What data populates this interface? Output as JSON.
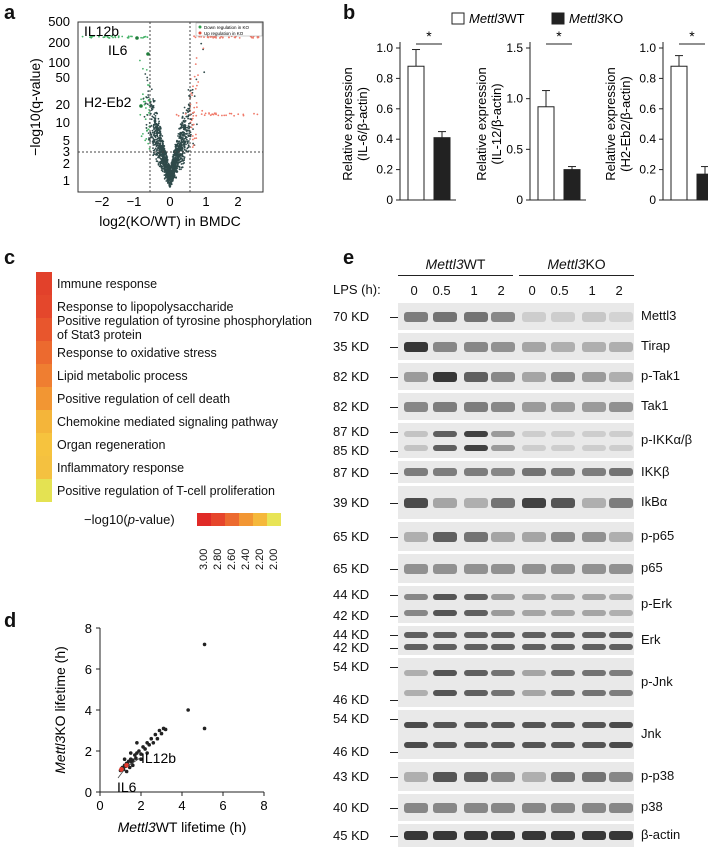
{
  "panels": {
    "a": "a",
    "b": "b",
    "c": "c",
    "d": "d",
    "e": "e"
  },
  "panel_a": {
    "legend": [
      "Down regulation in KO",
      "Up regulation in KO"
    ],
    "ylabel": "−log10(q-value)",
    "xlabel": "log2(KO/WT) in BMDC",
    "xticks": [
      "−2",
      "−1",
      "0",
      "1",
      "2"
    ],
    "yticks": [
      "500",
      "200",
      "100",
      "50",
      "20",
      "10",
      "5",
      "3",
      "2",
      "1"
    ],
    "labels": [
      "IL12b",
      "IL6",
      "H2-Eb2"
    ]
  },
  "panel_b": {
    "legend_wt": "Mettl3WT",
    "legend_ko": "Mettl3KO",
    "legend_wt_gene": "Mettl3",
    "legend_wt_suffix": "WT",
    "legend_ko_gene": "Mettl3",
    "legend_ko_suffix": "KO",
    "star": "*",
    "charts": [
      {
        "ylabel1": "Relative expression",
        "ylabel2": "(IL-6/β-actin)",
        "wt": 0.88,
        "ko": 0.41,
        "wt_err": 0.11,
        "ko_err": 0.04,
        "yticks": [
          "0",
          "0.2",
          "0.4",
          "0.6",
          "0.8",
          "1.0"
        ],
        "ymax": 1.0
      },
      {
        "ylabel1": "Relative expression",
        "ylabel2": "(IL-12/β-actin)",
        "wt": 0.92,
        "ko": 0.3,
        "wt_err": 0.16,
        "ko_err": 0.03,
        "yticks": [
          "0",
          "0.5",
          "1.0",
          "1.5"
        ],
        "ymax": 1.5
      },
      {
        "ylabel1": "Relative expression",
        "ylabel2": "(H2-Eb2/β-actin)",
        "wt": 0.88,
        "ko": 0.17,
        "wt_err": 0.07,
        "ko_err": 0.05,
        "yticks": [
          "0",
          "0.2",
          "0.4",
          "0.6",
          "0.8",
          "1.0"
        ],
        "ymax": 1.0
      }
    ]
  },
  "panel_c": {
    "terms": [
      {
        "label": "Immune response",
        "color": "#e2412b"
      },
      {
        "label": "Response to lipopolysaccharide",
        "color": "#e4472c"
      },
      {
        "label": "Positive regulation of tyrosine phosphorylation of Stat3 protein",
        "color": "#e8562d"
      },
      {
        "label": "Response to oxidative stress",
        "color": "#ec6a2f"
      },
      {
        "label": "Lipid metabolic process",
        "color": "#ef7e31"
      },
      {
        "label": "Positive regulation of cell death",
        "color": "#f29633"
      },
      {
        "label": "Chemokine mediated signaling pathway",
        "color": "#f4b53a"
      },
      {
        "label": "Organ regeneration",
        "color": "#f6c33e"
      },
      {
        "label": "Inflammatory response",
        "color": "#f4c140"
      },
      {
        "label": "Positive regulation of T-cell proliferation",
        "color": "#e4e252"
      }
    ],
    "scale_label_prefix": "−log10(",
    "scale_label_italic": "p",
    "scale_label_suffix": "-value)",
    "scale_values": [
      "3.00",
      "2.80",
      "2.60",
      "2.40",
      "2.20",
      "2.00"
    ],
    "scale_colors": [
      "#e02a27",
      "#e6452b",
      "#ec6a2f",
      "#f29633",
      "#f5b83b",
      "#e8e456"
    ]
  },
  "panel_d": {
    "chart_data": {
      "type": "scatter",
      "xlabel": "Mettl3WT lifetime (h)",
      "ylabel": "Mettl3KO lifetime (h)",
      "xlim": [
        0,
        8
      ],
      "ylim": [
        0,
        8
      ],
      "xticks": [
        "0",
        "2",
        "4",
        "6",
        "8"
      ],
      "yticks": [
        "0",
        "2",
        "4",
        "6",
        "8"
      ],
      "points": [
        [
          1.0,
          1.05
        ],
        [
          1.05,
          1.15
        ],
        [
          1.1,
          1.2
        ],
        [
          1.15,
          1.1
        ],
        [
          1.2,
          1.3
        ],
        [
          1.25,
          1.25
        ],
        [
          1.3,
          1.4
        ],
        [
          1.35,
          1.35
        ],
        [
          1.4,
          1.5
        ],
        [
          1.45,
          1.2
        ],
        [
          1.5,
          1.6
        ],
        [
          1.55,
          1.45
        ],
        [
          1.6,
          1.55
        ],
        [
          1.7,
          1.8
        ],
        [
          1.75,
          1.65
        ],
        [
          1.8,
          1.9
        ],
        [
          1.9,
          2.0
        ],
        [
          2.0,
          1.85
        ],
        [
          2.1,
          2.2
        ],
        [
          2.2,
          2.1
        ],
        [
          2.3,
          2.4
        ],
        [
          2.4,
          2.3
        ],
        [
          2.5,
          2.6
        ],
        [
          2.6,
          2.4
        ],
        [
          2.7,
          2.8
        ],
        [
          2.8,
          2.6
        ],
        [
          2.9,
          3.0
        ],
        [
          3.0,
          2.85
        ],
        [
          3.1,
          3.1
        ],
        [
          3.2,
          3.05
        ],
        [
          1.3,
          1.0
        ],
        [
          1.6,
          1.3
        ],
        [
          2.0,
          1.6
        ],
        [
          2.3,
          1.9
        ],
        [
          4.3,
          4.0
        ],
        [
          5.1,
          7.2
        ],
        [
          5.1,
          3.1
        ],
        [
          1.2,
          1.6
        ],
        [
          1.5,
          1.9
        ],
        [
          1.8,
          2.4
        ]
      ],
      "highlights": [
        {
          "name": "IL12b",
          "x": 1.3,
          "y": 1.3
        },
        {
          "name": "IL6",
          "x": 1.05,
          "y": 1.1
        }
      ],
      "x_gene": "Mettl3",
      "x_suffix": "WT lifetime (h)",
      "y_gene": "Mettl3",
      "y_suffix": "KO lifetime (h)"
    }
  },
  "panel_e": {
    "groups": [
      {
        "gene": "Mettl3",
        "suffix": "WT"
      },
      {
        "gene": "Mettl3",
        "suffix": "KO"
      }
    ],
    "lps_label": "LPS (h):",
    "timepoints": [
      "0",
      "0.5",
      "1",
      "2",
      "0",
      "0.5",
      "1",
      "2"
    ],
    "blots": [
      {
        "protein": "Mettl3",
        "kd": [
          "70 KD"
        ],
        "intensity": [
          0.55,
          0.6,
          0.6,
          0.5,
          0.15,
          0.15,
          0.18,
          0.12
        ]
      },
      {
        "protein": "Tirap",
        "kd": [
          "35 KD"
        ],
        "intensity": [
          0.9,
          0.5,
          0.5,
          0.45,
          0.35,
          0.3,
          0.3,
          0.3
        ]
      },
      {
        "protein": "p-Tak1",
        "kd": [
          "82 KD"
        ],
        "intensity": [
          0.4,
          0.9,
          0.7,
          0.5,
          0.35,
          0.5,
          0.4,
          0.3
        ]
      },
      {
        "protein": "Tak1",
        "kd": [
          "82 KD"
        ],
        "intensity": [
          0.5,
          0.55,
          0.55,
          0.5,
          0.4,
          0.4,
          0.4,
          0.45
        ]
      },
      {
        "protein": "p-IKKα/β",
        "kd": [
          "87 KD",
          "85 KD"
        ],
        "intensity": [
          0.2,
          0.7,
          0.85,
          0.4,
          0.15,
          0.15,
          0.15,
          0.15
        ]
      },
      {
        "protein": "IKKβ",
        "kd": [
          "87 KD"
        ],
        "intensity": [
          0.55,
          0.55,
          0.55,
          0.5,
          0.6,
          0.55,
          0.55,
          0.6
        ]
      },
      {
        "protein": "IkBα",
        "kd": [
          "39 KD"
        ],
        "intensity": [
          0.8,
          0.35,
          0.3,
          0.6,
          0.85,
          0.75,
          0.3,
          0.55
        ]
      },
      {
        "protein": "p-p65",
        "kd": [
          "65 KD"
        ],
        "intensity": [
          0.3,
          0.7,
          0.6,
          0.35,
          0.35,
          0.5,
          0.45,
          0.3
        ]
      },
      {
        "protein": "p65",
        "kd": [
          "65 KD"
        ],
        "intensity": [
          0.45,
          0.45,
          0.45,
          0.45,
          0.45,
          0.45,
          0.45,
          0.45
        ]
      },
      {
        "protein": "p-Erk",
        "kd": [
          "44 KD",
          "42 KD"
        ],
        "intensity": [
          0.5,
          0.75,
          0.7,
          0.4,
          0.35,
          0.35,
          0.35,
          0.3
        ]
      },
      {
        "protein": "Erk",
        "kd": [
          "44 KD",
          "42 KD"
        ],
        "intensity": [
          0.7,
          0.7,
          0.7,
          0.7,
          0.7,
          0.7,
          0.7,
          0.7
        ]
      },
      {
        "protein": "p-Jnk",
        "kd": [
          "54 KD",
          "46 KD"
        ],
        "intensity": [
          0.3,
          0.75,
          0.7,
          0.6,
          0.35,
          0.6,
          0.6,
          0.55
        ]
      },
      {
        "protein": "Jnk",
        "kd": [
          "54 KD",
          "46 KD"
        ],
        "intensity": [
          0.8,
          0.75,
          0.75,
          0.75,
          0.75,
          0.75,
          0.75,
          0.8
        ]
      },
      {
        "protein": "p-p38",
        "kd": [
          "43 KD"
        ],
        "intensity": [
          0.3,
          0.75,
          0.7,
          0.5,
          0.3,
          0.6,
          0.6,
          0.5
        ]
      },
      {
        "protein": "p38",
        "kd": [
          "40 KD"
        ],
        "intensity": [
          0.5,
          0.5,
          0.5,
          0.5,
          0.5,
          0.5,
          0.5,
          0.5
        ]
      },
      {
        "protein": "β-actin",
        "kd": [
          "45 KD"
        ],
        "intensity": [
          0.9,
          0.9,
          0.9,
          0.9,
          0.9,
          0.9,
          0.9,
          0.9
        ]
      }
    ]
  }
}
